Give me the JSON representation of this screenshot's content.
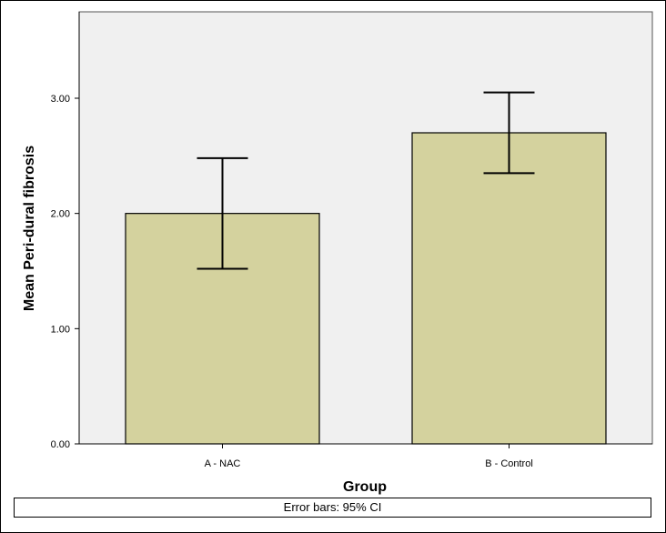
{
  "chart_data": {
    "type": "bar",
    "categories": [
      "A - NAC",
      "B - Control"
    ],
    "values": [
      2.0,
      2.7
    ],
    "error_bars": [
      {
        "low": 1.52,
        "high": 2.48
      },
      {
        "low": 2.35,
        "high": 3.05
      }
    ],
    "xlabel": "Group",
    "ylabel": "Mean Peri-dural fibrosis",
    "ylim": [
      0,
      3.75
    ],
    "yticks": [
      "0.00",
      "1.00",
      "2.00",
      "3.00"
    ],
    "ytick_values": [
      0,
      1,
      2,
      3
    ],
    "grid": false,
    "bar_color": "#d4d29e",
    "plot_background": "#f0f0f0",
    "footnote": "Error bars: 95% CI"
  }
}
